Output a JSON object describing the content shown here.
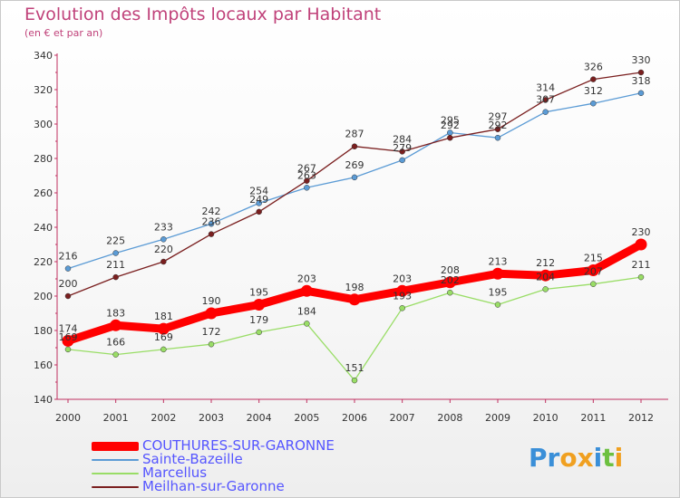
{
  "chart_data": {
    "type": "line",
    "title": "Evolution des Impôts locaux par Habitant",
    "subtitle": "(en € et par an)",
    "x": [
      "2000",
      "2001",
      "2002",
      "2003",
      "2004",
      "2005",
      "2006",
      "2007",
      "2008",
      "2009",
      "2010",
      "2011",
      "2012"
    ],
    "ylim": [
      140,
      340
    ],
    "yticks": [
      "140",
      "160",
      "180",
      "200",
      "220",
      "240",
      "260",
      "280",
      "300",
      "320",
      "340"
    ],
    "grid": false,
    "legend_position": "bottom-left",
    "series": [
      {
        "name": "COUTHURES-SUR-GARONNE",
        "color": "#ff0000",
        "values": [
          174,
          183,
          181,
          190,
          195,
          203,
          198,
          203,
          208,
          213,
          212,
          215,
          230
        ]
      },
      {
        "name": "Sainte-Bazeille",
        "color": "#5b9bd5",
        "values": [
          216,
          225,
          233,
          242,
          254,
          263,
          269,
          279,
          295,
          292,
          307,
          312,
          318
        ]
      },
      {
        "name": "Marcellus",
        "color": "#99dd66",
        "values": [
          169,
          166,
          169,
          172,
          179,
          184,
          151,
          193,
          202,
          195,
          204,
          207,
          211
        ]
      },
      {
        "name": "Meilhan-sur-Garonne",
        "color": "#7a1f1f",
        "values": [
          200,
          211,
          220,
          236,
          249,
          267,
          287,
          284,
          292,
          297,
          314,
          326,
          330
        ]
      }
    ]
  },
  "logo": {
    "letters": [
      "P",
      "r",
      "o",
      "x",
      "i",
      "t",
      "i"
    ],
    "colors": [
      "#3a8fd8",
      "#3a8fd8",
      "#f0a020",
      "#f0a020",
      "#3a8fd8",
      "#6cc040",
      "#f0a020"
    ]
  }
}
